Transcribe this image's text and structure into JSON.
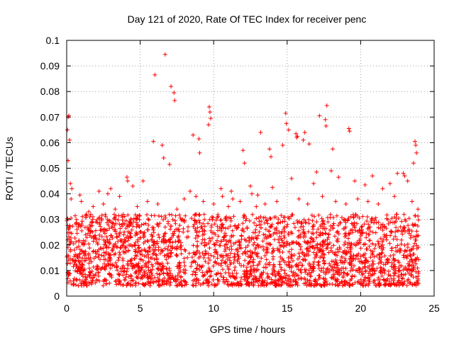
{
  "chart_data": {
    "type": "scatter",
    "title": "Day 121 of 2020, Rate Of TEC Index for receiver penc",
    "xlabel": "GPS time / hours",
    "ylabel": "ROTI / TECUs",
    "xlim": [
      0,
      25
    ],
    "ylim": [
      0,
      0.1
    ],
    "xticks": [
      0,
      5,
      10,
      15,
      20,
      25
    ],
    "xtick_labels": [
      "0",
      "5",
      "10",
      "15",
      "20",
      "25"
    ],
    "yticks": [
      0,
      0.01,
      0.02,
      0.03,
      0.04,
      0.05,
      0.06,
      0.07,
      0.08,
      0.09,
      0.1
    ],
    "ytick_labels": [
      "0",
      "0.01",
      "0.02",
      "0.03",
      "0.04",
      "0.05",
      "0.06",
      "0.07",
      "0.08",
      "0.09",
      "0.1"
    ],
    "grid": true,
    "marker": "+",
    "series_color": "#ff0000",
    "series": [
      {
        "name": "ROTI",
        "x": [
          0.05,
          0.1,
          0.15,
          0.2,
          0.1,
          0.25,
          6.7,
          6.0,
          7.1,
          7.3,
          7.35,
          9.7,
          9.75,
          9.8,
          9.65,
          17.7,
          17.6,
          17.65,
          14.9,
          14.95,
          15.1,
          16.2,
          16.1,
          13.2,
          12.0,
          12.1,
          8.6,
          9.0,
          9.05,
          15.6,
          15.7,
          15.65,
          16.5,
          17.2,
          19.2,
          19.25,
          23.7,
          23.75,
          23.8,
          23.6,
          18.1,
          18.0,
          22.9,
          23.0,
          13.8,
          13.9,
          14.7,
          4.1,
          4.15,
          3.6,
          0.3,
          0.35,
          0.9,
          1.0,
          5.9,
          6.5,
          6.6,
          7.0,
          10.5,
          10.6,
          11.2,
          11.3,
          12.5,
          12.6,
          13.0,
          14.0,
          15.3,
          16.8,
          17.0,
          18.5,
          19.6,
          20.3,
          20.8,
          21.5,
          22.0,
          22.5,
          23.2,
          2.2,
          2.8,
          3.0,
          4.5,
          5.2,
          8.0,
          8.4,
          1.5,
          1.8,
          2.5,
          3.3,
          4.8,
          5.5,
          6.2,
          7.5,
          8.8,
          9.3,
          10.0,
          11.0,
          11.8,
          12.9,
          13.5,
          14.3,
          15.8,
          16.4,
          17.4,
          18.3,
          19.0,
          19.8,
          20.5,
          21.2,
          22.3,
          23.5,
          23.9
        ],
        "y": [
          0.065,
          0.07,
          0.0705,
          0.061,
          0.053,
          0.044,
          0.0945,
          0.0865,
          0.082,
          0.0795,
          0.0765,
          0.074,
          0.072,
          0.0695,
          0.067,
          0.0745,
          0.069,
          0.0665,
          0.0715,
          0.0675,
          0.065,
          0.064,
          0.061,
          0.064,
          0.057,
          0.052,
          0.063,
          0.0615,
          0.056,
          0.0635,
          0.0625,
          0.062,
          0.0595,
          0.0705,
          0.0655,
          0.0645,
          0.0605,
          0.059,
          0.056,
          0.052,
          0.0575,
          0.049,
          0.048,
          0.047,
          0.0575,
          0.0545,
          0.059,
          0.0465,
          0.045,
          0.039,
          0.038,
          0.042,
          0.0395,
          0.037,
          0.0605,
          0.059,
          0.054,
          0.0515,
          0.042,
          0.039,
          0.041,
          0.038,
          0.043,
          0.04,
          0.0395,
          0.0425,
          0.046,
          0.044,
          0.0485,
          0.0465,
          0.045,
          0.0435,
          0.047,
          0.042,
          0.044,
          0.048,
          0.045,
          0.041,
          0.04,
          0.042,
          0.043,
          0.045,
          0.038,
          0.041,
          0.033,
          0.035,
          0.036,
          0.034,
          0.035,
          0.037,
          0.036,
          0.034,
          0.039,
          0.037,
          0.036,
          0.035,
          0.037,
          0.035,
          0.036,
          0.037,
          0.038,
          0.036,
          0.039,
          0.037,
          0.036,
          0.038,
          0.037,
          0.036,
          0.039,
          0.037,
          0.034
        ],
        "dense_band": {
          "description_values_only": true,
          "x_range": [
            0,
            23.95
          ],
          "y_min": 0.004,
          "y_typical_max": 0.032
        }
      }
    ]
  }
}
